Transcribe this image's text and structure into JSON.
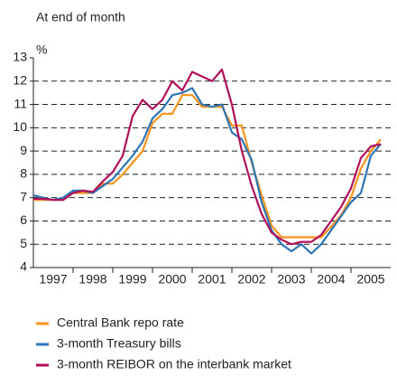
{
  "chart_data": {
    "type": "line",
    "title": "At end of month",
    "y_unit": "%",
    "x": [
      1997,
      1997.25,
      1997.5,
      1997.75,
      1998,
      1998.25,
      1998.5,
      1998.75,
      1999,
      1999.25,
      1999.5,
      1999.75,
      2000,
      2000.25,
      2000.5,
      2000.75,
      2001,
      2001.25,
      2001.5,
      2001.75,
      2002,
      2002.25,
      2002.5,
      2002.75,
      2003,
      2003.25,
      2003.5,
      2003.75,
      2004,
      2004.25,
      2004.5,
      2004.75,
      2005,
      2005.25,
      2005.5,
      2005.75
    ],
    "series": [
      {
        "name": "Central Bank repo rate",
        "color": "#f7941d",
        "values": [
          6.9,
          6.9,
          6.9,
          6.9,
          7.2,
          7.2,
          7.2,
          7.6,
          7.6,
          8.0,
          8.5,
          9.0,
          10.2,
          10.6,
          10.6,
          11.4,
          11.4,
          10.9,
          10.9,
          10.9,
          10.1,
          10.1,
          8.5,
          7.1,
          5.8,
          5.3,
          5.3,
          5.3,
          5.3,
          5.3,
          5.75,
          6.25,
          7.0,
          8.25,
          9.0,
          9.5
        ]
      },
      {
        "name": "3-month Treasury bills",
        "color": "#2e75b6",
        "values": [
          7.1,
          7.0,
          6.9,
          7.0,
          7.3,
          7.3,
          7.2,
          7.5,
          7.8,
          8.3,
          8.8,
          9.4,
          10.4,
          10.8,
          11.4,
          11.5,
          11.7,
          11.0,
          10.9,
          11.0,
          9.8,
          9.5,
          8.6,
          6.8,
          5.6,
          5.0,
          4.7,
          5.0,
          4.6,
          5.0,
          5.6,
          6.2,
          6.8,
          7.2,
          8.8,
          9.3
        ]
      },
      {
        "name": "3-month REIBOR on the interbank market",
        "color": "#b0105a",
        "values": [
          6.95,
          6.95,
          6.9,
          6.9,
          7.2,
          7.3,
          7.25,
          7.7,
          8.1,
          8.8,
          10.5,
          11.2,
          10.8,
          11.2,
          12.0,
          11.6,
          12.4,
          12.2,
          12.0,
          12.5,
          11.0,
          9.0,
          7.5,
          6.3,
          5.5,
          5.2,
          5.0,
          5.1,
          5.1,
          5.4,
          6.0,
          6.6,
          7.4,
          8.7,
          9.2,
          9.3
        ]
      }
    ],
    "xlim": [
      1997,
      2006
    ],
    "xticks": [
      {
        "value": 1997.5,
        "label": "1997"
      },
      {
        "value": 1998.5,
        "label": "1998"
      },
      {
        "value": 1999.5,
        "label": "1999"
      },
      {
        "value": 2000.5,
        "label": "2000"
      },
      {
        "value": 2001.5,
        "label": "2001"
      },
      {
        "value": 2002.5,
        "label": "2002"
      },
      {
        "value": 2003.5,
        "label": "2003"
      },
      {
        "value": 2004.5,
        "label": "2004"
      },
      {
        "value": 2005.5,
        "label": "2005"
      }
    ],
    "ylim": [
      4,
      13
    ],
    "yticks": [
      4,
      5,
      6,
      7,
      8,
      9,
      10,
      11,
      12,
      13
    ],
    "grid": true
  }
}
